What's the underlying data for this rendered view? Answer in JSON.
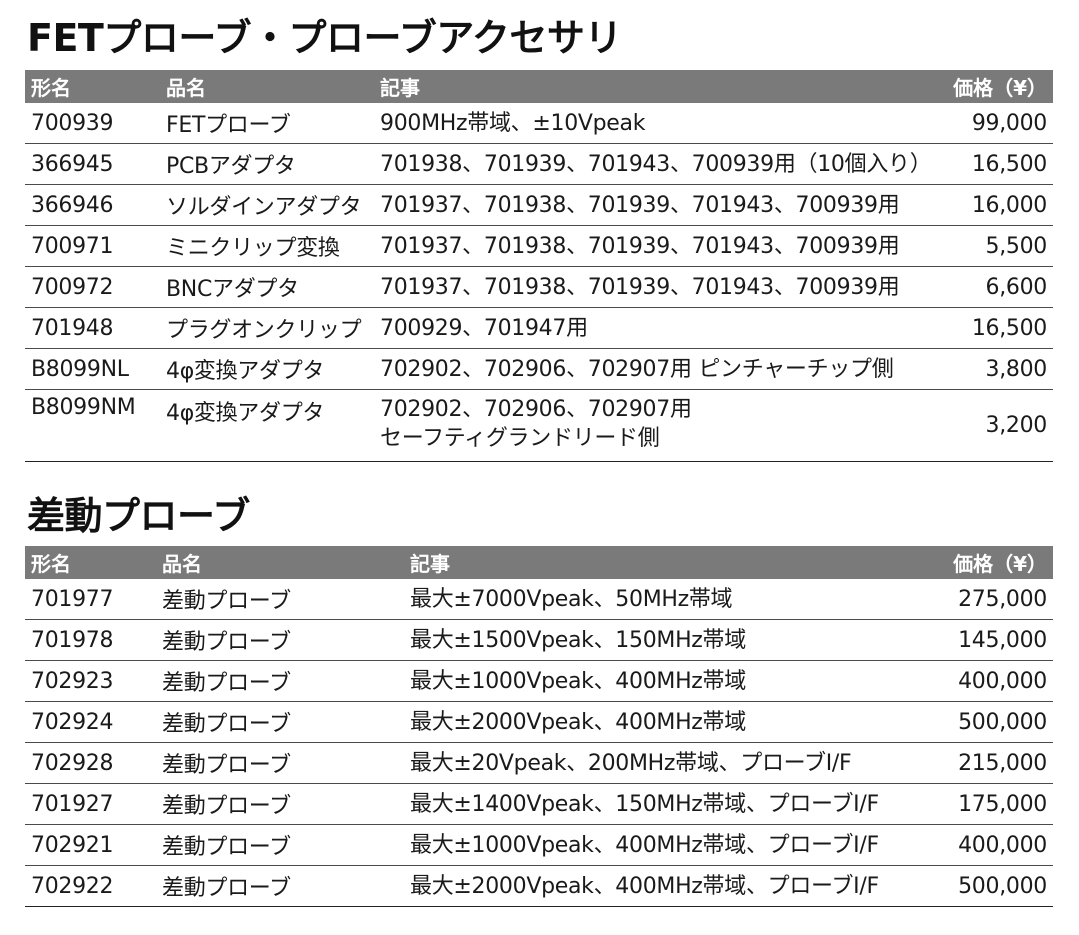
{
  "sections": [
    {
      "title": "FETプローブ・プローブアクセサリ",
      "headers": {
        "model": "形名",
        "name": "品名",
        "note": "記事",
        "price": "価格（¥）"
      },
      "rows": [
        {
          "model": "700939",
          "name": "FETプローブ",
          "note": [
            "900MHz帯域、±10Vpeak"
          ],
          "price": "99,000"
        },
        {
          "model": "366945",
          "name": "PCBアダプタ",
          "note": [
            "701938、701939、701943、700939用（10個入り）"
          ],
          "price": "16,500"
        },
        {
          "model": "366946",
          "name": "ソルダインアダプタ",
          "note": [
            "701937、701938、701939、701943、700939用"
          ],
          "price": "16,000"
        },
        {
          "model": "700971",
          "name": "ミニクリップ変換",
          "note": [
            "701937、701938、701939、701943、700939用"
          ],
          "price": "5,500"
        },
        {
          "model": "700972",
          "name": "BNCアダプタ",
          "note": [
            "701937、701938、701939、701943、700939用"
          ],
          "price": "6,600"
        },
        {
          "model": "701948",
          "name": "プラグオンクリップ",
          "note": [
            "700929、701947用"
          ],
          "price": "16,500"
        },
        {
          "model": "B8099NL",
          "name": "4φ変換アダプタ",
          "note": [
            "702902、702906、702907用 ピンチャーチップ側"
          ],
          "price": "3,800"
        },
        {
          "model": "B8099NM",
          "name": "4φ変換アダプタ",
          "note": [
            "702902、702906、702907用",
            "セーフティグランドリード側"
          ],
          "price": "3,200"
        }
      ]
    },
    {
      "title": "差動プローブ",
      "headers": {
        "model": "形名",
        "name": "品名",
        "note": "記事",
        "price": "価格（¥）"
      },
      "rows": [
        {
          "model": "701977",
          "name": "差動プローブ",
          "note": [
            "最大±7000Vpeak、50MHz帯域"
          ],
          "price": "275,000"
        },
        {
          "model": "701978",
          "name": "差動プローブ",
          "note": [
            "最大±1500Vpeak、150MHz帯域"
          ],
          "price": "145,000"
        },
        {
          "model": "702923",
          "name": "差動プローブ",
          "note": [
            "最大±1000Vpeak、400MHz帯域"
          ],
          "price": "400,000"
        },
        {
          "model": "702924",
          "name": "差動プローブ",
          "note": [
            "最大±2000Vpeak、400MHz帯域"
          ],
          "price": "500,000"
        },
        {
          "model": "702928",
          "name": "差動プローブ",
          "note": [
            "最大±20Vpeak、200MHz帯域、プローブI/F"
          ],
          "price": "215,000"
        },
        {
          "model": "701927",
          "name": "差動プローブ",
          "note": [
            "最大±1400Vpeak、150MHz帯域、プローブI/F"
          ],
          "price": "175,000"
        },
        {
          "model": "702921",
          "name": "差動プローブ",
          "note": [
            "最大±1000Vpeak、400MHz帯域、プローブI/F"
          ],
          "price": "400,000"
        },
        {
          "model": "702922",
          "name": "差動プローブ",
          "note": [
            "最大±2000Vpeak、400MHz帯域、プローブI/F"
          ],
          "price": "500,000"
        }
      ]
    }
  ]
}
